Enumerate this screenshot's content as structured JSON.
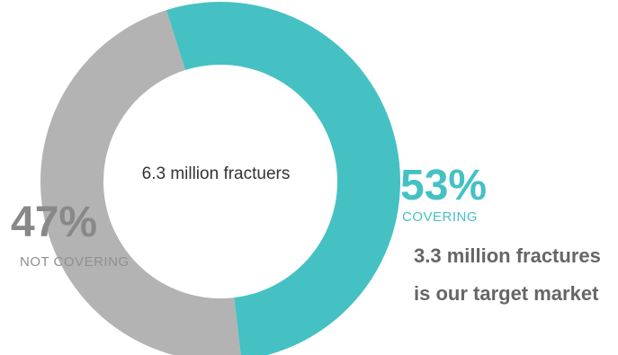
{
  "chart_data": {
    "type": "pie",
    "style": "donut",
    "center_label": "6.3 million fractuers",
    "slices": [
      {
        "label": "COVERING",
        "value": 53,
        "display": "53%",
        "color": "#45c1c4"
      },
      {
        "label": "NOT COVERING",
        "value": 47,
        "display": "47%",
        "color": "#b3b3b3"
      }
    ],
    "annotations": [
      "3.3 million fractures",
      "is our target market"
    ]
  }
}
